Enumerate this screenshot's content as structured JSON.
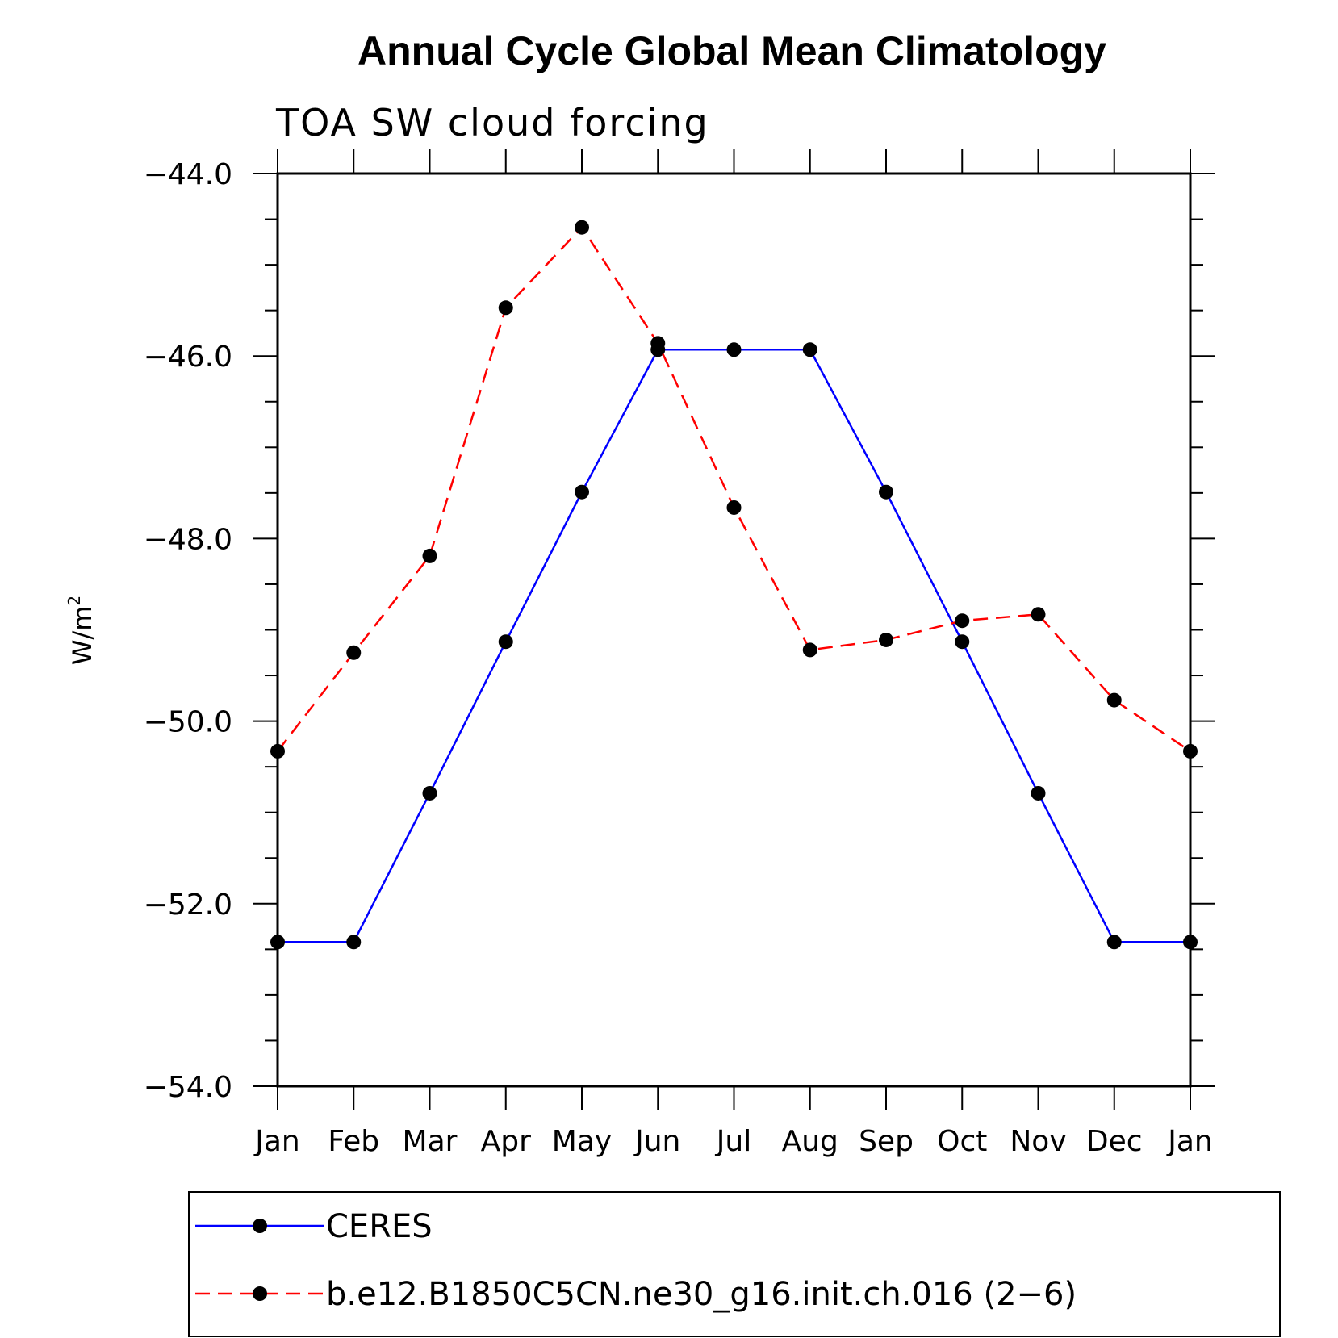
{
  "chart_data": {
    "type": "line",
    "title": "Annual Cycle Global Mean Climatology",
    "subtitle": "TOA SW cloud forcing",
    "ylabel": "W/m",
    "ylabel_superscript": "2",
    "xlabel": "",
    "ylim": [
      -54.0,
      -44.0
    ],
    "yticks": [
      -44.0,
      -46.0,
      -48.0,
      -50.0,
      -52.0,
      -54.0
    ],
    "ytick_labels": [
      "−44.0",
      "−46.0",
      "−48.0",
      "−50.0",
      "−52.0",
      "−54.0"
    ],
    "categories": [
      "Jan",
      "Feb",
      "Mar",
      "Apr",
      "May",
      "Jun",
      "Jul",
      "Aug",
      "Sep",
      "Oct",
      "Nov",
      "Dec",
      "Jan"
    ],
    "series": [
      {
        "name": "CERES",
        "color": "#0000ff",
        "style": "solid",
        "values": [
          -52.42,
          -52.42,
          -50.79,
          -49.13,
          -47.49,
          -45.93,
          -45.93,
          -45.93,
          -47.49,
          -49.13,
          -50.79,
          -52.42,
          -52.42
        ]
      },
      {
        "name": "b.e12.B1850C5CN.ne30_g16.init.ch.016 (2−6)",
        "color": "#ff0000",
        "style": "dashed",
        "values": [
          -50.33,
          -49.25,
          -48.19,
          -45.47,
          -44.59,
          -45.86,
          -47.66,
          -49.22,
          -49.11,
          -48.9,
          -48.83,
          -49.77,
          -50.33
        ]
      }
    ],
    "grid": false,
    "legend_position": "bottom"
  }
}
